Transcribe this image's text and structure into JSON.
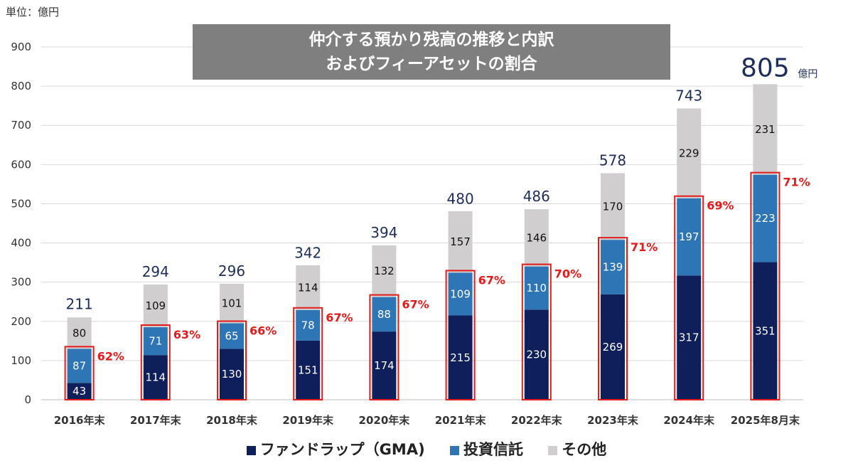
{
  "unit_label": "単位：億円",
  "title_lines": [
    "仲介する預かり残高の推移と内訳",
    "およびフィーアセットの割合"
  ],
  "colors": {
    "gma": "#0e1f5b",
    "trust": "#2e75b6",
    "other": "#d0cece",
    "ratio_box": "#e31b1b",
    "total_text": "#1f2d5a",
    "grid": "#d9d9d9"
  },
  "chart_data": {
    "type": "bar",
    "stacked": true,
    "categories": [
      "2016年末",
      "2017年末",
      "2018年末",
      "2019年末",
      "2020年末",
      "2021年末",
      "2022年末",
      "2023年末",
      "2024年末",
      "2025年8月末"
    ],
    "series": [
      {
        "name": "ファンドラップ（GMA)",
        "values": [
          43,
          114,
          130,
          151,
          174,
          215,
          230,
          269,
          317,
          351
        ]
      },
      {
        "name": "投資信託",
        "values": [
          87,
          71,
          65,
          78,
          88,
          109,
          110,
          139,
          197,
          223
        ]
      },
      {
        "name": "その他",
        "values": [
          80,
          109,
          101,
          114,
          132,
          157,
          146,
          170,
          229,
          231
        ]
      }
    ],
    "totals": [
      211,
      294,
      296,
      342,
      394,
      480,
      486,
      578,
      743,
      805
    ],
    "total_unit_last": "億円",
    "fee_asset_ratios": [
      "62%",
      "63%",
      "66%",
      "67%",
      "67%",
      "67%",
      "70%",
      "71%",
      "69%",
      "71%"
    ],
    "ylim": [
      0,
      900
    ],
    "yticks": [
      "0",
      "100",
      "200",
      "300",
      "400",
      "500",
      "600",
      "700",
      "800",
      "900"
    ],
    "grid": true,
    "legend_position": "bottom"
  }
}
